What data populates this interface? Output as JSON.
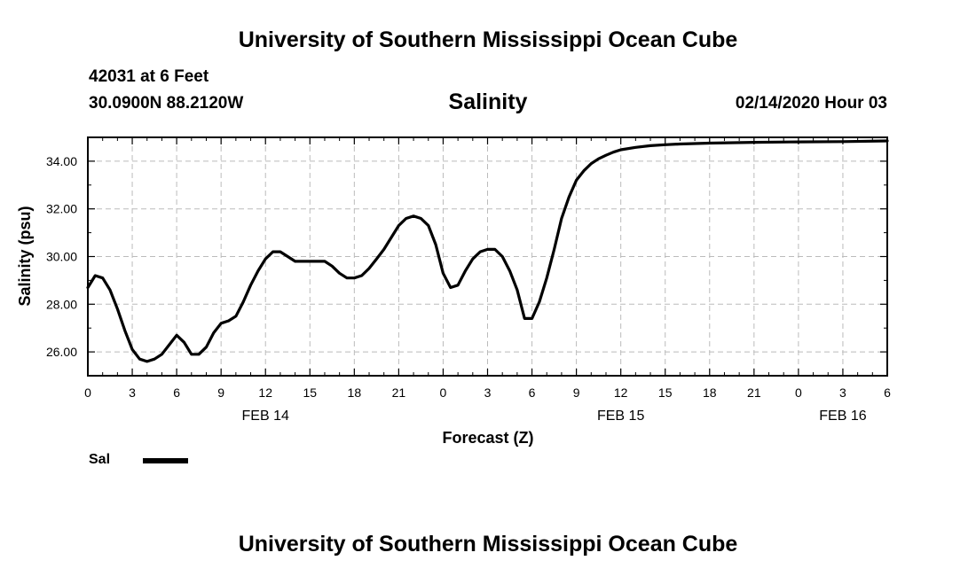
{
  "header": {
    "title": "University of Southern Mississippi Ocean Cube",
    "station": "42031 at 6 Feet",
    "coordinates": "30.0900N 88.2120W",
    "run_time": "02/14/2020 Hour 03"
  },
  "footer": {
    "title": "University of Southern Mississippi Ocean Cube"
  },
  "legend": {
    "label": "Sal",
    "color": "#000000"
  },
  "chart_data": {
    "type": "line",
    "title": "Salinity",
    "xlabel": "Forecast (Z)",
    "ylabel": "Salinity (psu)",
    "ylim": [
      25.0,
      35.0
    ],
    "yticks": [
      "26.00",
      "28.00",
      "30.00",
      "32.00",
      "34.00"
    ],
    "ytick_values": [
      26,
      28,
      30,
      32,
      34
    ],
    "xlim": [
      0,
      54
    ],
    "xtick_labels": [
      "0",
      "3",
      "6",
      "9",
      "12",
      "15",
      "18",
      "21",
      "0",
      "3",
      "6",
      "9",
      "12",
      "15",
      "18",
      "21",
      "0",
      "3",
      "6"
    ],
    "day_labels": [
      {
        "label": "FEB 14",
        "hour": 12
      },
      {
        "label": "FEB 15",
        "hour": 36
      },
      {
        "label": "FEB 16",
        "hour": 51
      }
    ],
    "grid": true,
    "series": [
      {
        "name": "Sal",
        "color": "#000000",
        "x": [
          0,
          0.5,
          1,
          1.5,
          2,
          2.5,
          3,
          3.5,
          4,
          4.5,
          5,
          5.5,
          6,
          6.5,
          7,
          7.5,
          8,
          8.5,
          9,
          9.5,
          10,
          10.5,
          11,
          11.5,
          12,
          12.5,
          13,
          13.5,
          14,
          14.5,
          15,
          15.5,
          16,
          16.5,
          17,
          17.5,
          18,
          18.5,
          19,
          19.5,
          20,
          20.5,
          21,
          21.5,
          22,
          22.5,
          23,
          23.5,
          24,
          24.5,
          25,
          25.5,
          26,
          26.5,
          27,
          27.5,
          28,
          28.5,
          29,
          29.5,
          30,
          30.5,
          31,
          31.5,
          32,
          32.5,
          33,
          33.5,
          34,
          34.5,
          35,
          35.5,
          36,
          37,
          38,
          39,
          40,
          42,
          45,
          48,
          51,
          54
        ],
        "values": [
          28.7,
          29.2,
          29.1,
          28.6,
          27.8,
          26.9,
          26.1,
          25.7,
          25.6,
          25.7,
          25.9,
          26.3,
          26.7,
          26.4,
          25.9,
          25.9,
          26.2,
          26.8,
          27.2,
          27.3,
          27.5,
          28.1,
          28.8,
          29.4,
          29.9,
          30.2,
          30.2,
          30.0,
          29.8,
          29.8,
          29.8,
          29.8,
          29.8,
          29.6,
          29.3,
          29.1,
          29.1,
          29.2,
          29.5,
          29.9,
          30.3,
          30.8,
          31.3,
          31.6,
          31.7,
          31.6,
          31.3,
          30.5,
          29.3,
          28.7,
          28.8,
          29.4,
          29.9,
          30.2,
          30.3,
          30.3,
          30.0,
          29.4,
          28.6,
          27.4,
          27.4,
          28.1,
          29.1,
          30.3,
          31.6,
          32.5,
          33.2,
          33.6,
          33.9,
          34.1,
          34.25,
          34.38,
          34.48,
          34.58,
          34.65,
          34.69,
          34.72,
          34.76,
          34.79,
          34.81,
          34.82,
          34.85
        ]
      }
    ]
  }
}
